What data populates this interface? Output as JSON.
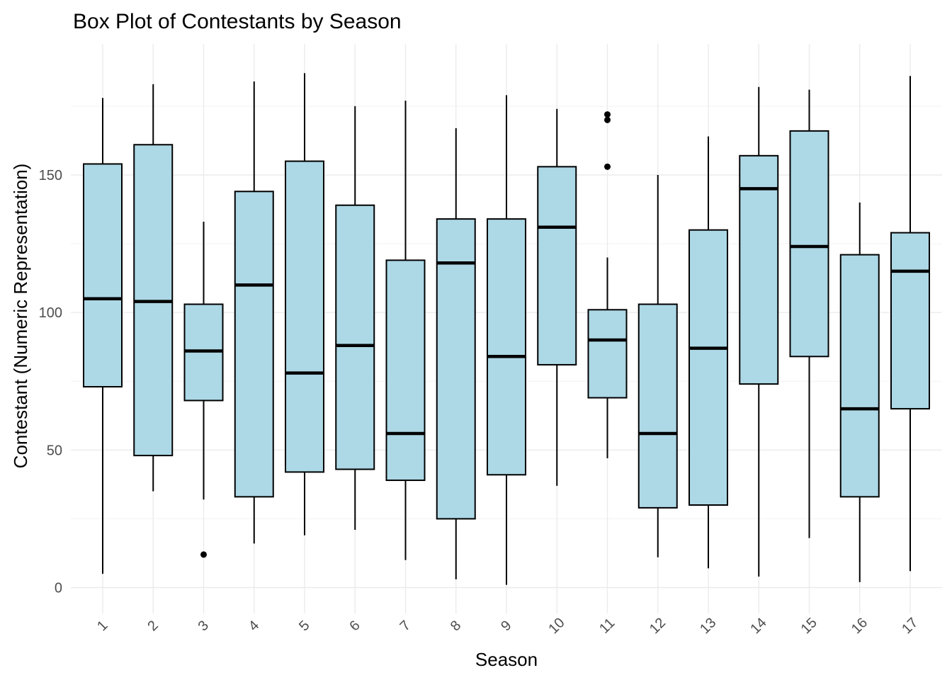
{
  "chart_data": {
    "type": "box",
    "title": "Box Plot of Contestants by Season",
    "xlabel": "Season",
    "ylabel": "Contestant (Numeric Representation)",
    "ylim": [
      -10,
      197
    ],
    "yticks": [
      0,
      50,
      100,
      150
    ],
    "grid": true,
    "box_color": "#add8e6",
    "categories": [
      "1",
      "2",
      "3",
      "4",
      "5",
      "6",
      "7",
      "8",
      "9",
      "10",
      "11",
      "12",
      "13",
      "14",
      "15",
      "16",
      "17"
    ],
    "boxes": [
      {
        "season": "1",
        "whisker_low": 5,
        "q1": 73,
        "median": 105,
        "q3": 154,
        "whisker_high": 178,
        "outliers": []
      },
      {
        "season": "2",
        "whisker_low": 35,
        "q1": 48,
        "median": 104,
        "q3": 161,
        "whisker_high": 183,
        "outliers": []
      },
      {
        "season": "3",
        "whisker_low": 32,
        "q1": 68,
        "median": 86,
        "q3": 103,
        "whisker_high": 133,
        "outliers": [
          12
        ]
      },
      {
        "season": "4",
        "whisker_low": 16,
        "q1": 33,
        "median": 110,
        "q3": 144,
        "whisker_high": 184,
        "outliers": []
      },
      {
        "season": "5",
        "whisker_low": 19,
        "q1": 42,
        "median": 78,
        "q3": 155,
        "whisker_high": 187,
        "outliers": []
      },
      {
        "season": "6",
        "whisker_low": 21,
        "q1": 43,
        "median": 88,
        "q3": 139,
        "whisker_high": 175,
        "outliers": []
      },
      {
        "season": "7",
        "whisker_low": 10,
        "q1": 39,
        "median": 56,
        "q3": 119,
        "whisker_high": 177,
        "outliers": []
      },
      {
        "season": "8",
        "whisker_low": 3,
        "q1": 25,
        "median": 118,
        "q3": 134,
        "whisker_high": 167,
        "outliers": []
      },
      {
        "season": "9",
        "whisker_low": 1,
        "q1": 41,
        "median": 84,
        "q3": 134,
        "whisker_high": 179,
        "outliers": []
      },
      {
        "season": "10",
        "whisker_low": 37,
        "q1": 81,
        "median": 131,
        "q3": 153,
        "whisker_high": 174,
        "outliers": []
      },
      {
        "season": "11",
        "whisker_low": 47,
        "q1": 69,
        "median": 90,
        "q3": 101,
        "whisker_high": 120,
        "outliers": [
          153,
          170,
          172
        ]
      },
      {
        "season": "12",
        "whisker_low": 11,
        "q1": 29,
        "median": 56,
        "q3": 103,
        "whisker_high": 150,
        "outliers": []
      },
      {
        "season": "13",
        "whisker_low": 7,
        "q1": 30,
        "median": 87,
        "q3": 130,
        "whisker_high": 164,
        "outliers": []
      },
      {
        "season": "14",
        "whisker_low": 4,
        "q1": 74,
        "median": 145,
        "q3": 157,
        "whisker_high": 182,
        "outliers": []
      },
      {
        "season": "15",
        "whisker_low": 18,
        "q1": 84,
        "median": 124,
        "q3": 166,
        "whisker_high": 181,
        "outliers": []
      },
      {
        "season": "16",
        "whisker_low": 2,
        "q1": 33,
        "median": 65,
        "q3": 121,
        "whisker_high": 140,
        "outliers": []
      },
      {
        "season": "17",
        "whisker_low": 6,
        "q1": 65,
        "median": 115,
        "q3": 129,
        "whisker_high": 186,
        "outliers": []
      }
    ]
  }
}
